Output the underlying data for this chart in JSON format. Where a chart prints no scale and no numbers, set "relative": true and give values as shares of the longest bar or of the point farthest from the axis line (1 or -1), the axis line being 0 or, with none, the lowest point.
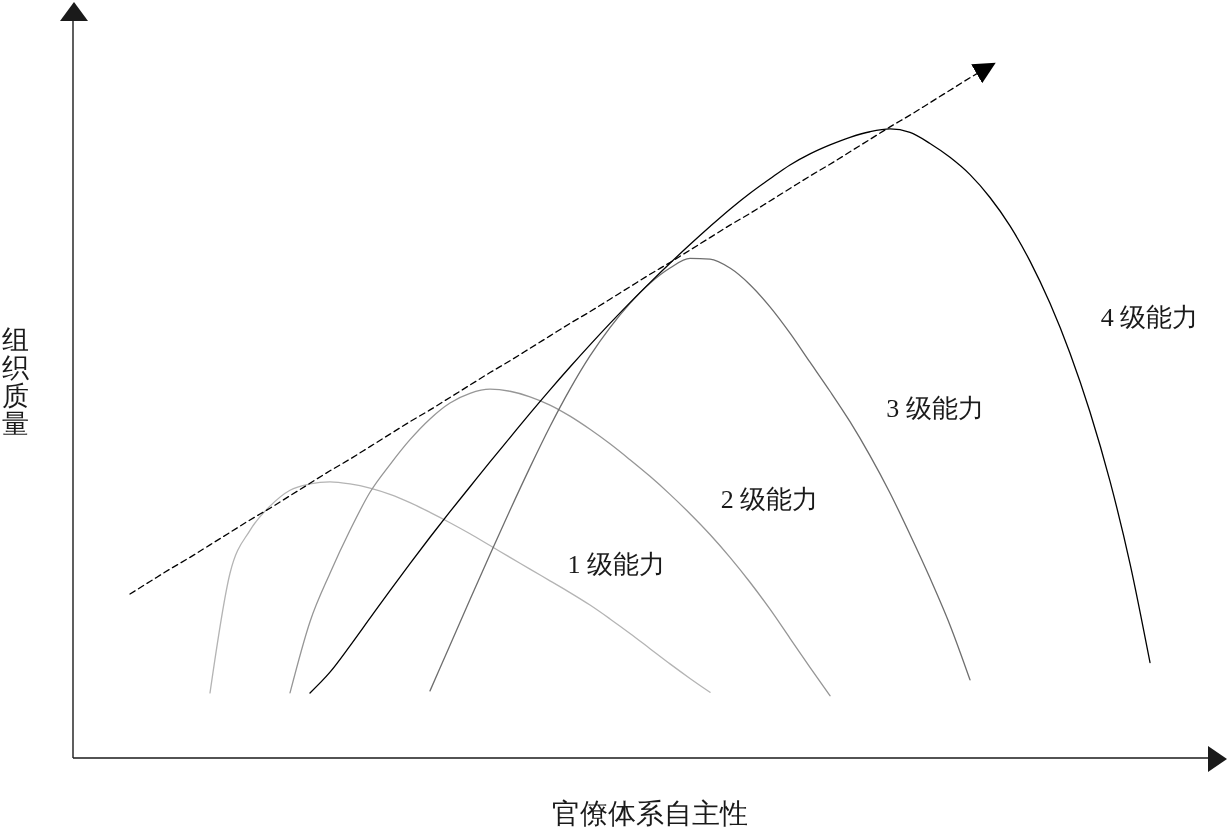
{
  "chart_data": {
    "type": "line",
    "relative": true,
    "xlabel": "官僚体系自主性",
    "ylabel": "组织质量",
    "categories": [
      null,
      null,
      null,
      null,
      null,
      null,
      null,
      null,
      null,
      null,
      null,
      null,
      null,
      null,
      null,
      null,
      null,
      null,
      null,
      null,
      null,
      null,
      null,
      null,
      null,
      null,
      null,
      null,
      null,
      null,
      null,
      null,
      null,
      null,
      null,
      null,
      null,
      null,
      null,
      null,
      null,
      null,
      null,
      null,
      null,
      null,
      null,
      null,
      null,
      null,
      null,
      null,
      null,
      null,
      null,
      null,
      null
    ],
    "series": [
      {
        "name": "1 级能力",
        "color": "#b4b4b4",
        "values": [
          null,
          null,
          null,
          null,
          null,
          null,
          0.094,
          0.267,
          0.329,
          0.364,
          0.387,
          0.396,
          0.399,
          0.396,
          0.39,
          0.381,
          0.369,
          0.355,
          0.34,
          0.324,
          0.307,
          0.29,
          0.273,
          0.256,
          0.239,
          0.221,
          0.201,
          0.18,
          0.158,
          0.136,
          0.115,
          0.095,
          null,
          null,
          null,
          null,
          null,
          null,
          null,
          null,
          null,
          null,
          null,
          null,
          null,
          null,
          null,
          null,
          null,
          null,
          null,
          null,
          null,
          null,
          null,
          null,
          null
        ]
      },
      {
        "name": "2 级能力",
        "color": "#969696",
        "values": [
          null,
          null,
          null,
          null,
          null,
          null,
          null,
          null,
          null,
          null,
          0.094,
          0.197,
          0.267,
          0.329,
          0.384,
          0.424,
          0.46,
          0.49,
          0.513,
          0.527,
          0.533,
          0.53,
          0.522,
          0.51,
          0.494,
          0.475,
          0.454,
          0.431,
          0.407,
          0.381,
          0.353,
          0.323,
          0.29,
          0.254,
          0.215,
          0.173,
          0.131,
          0.09,
          null,
          null,
          null,
          null,
          null,
          null,
          null,
          null,
          null,
          null,
          null,
          null,
          null,
          null,
          null,
          null,
          null,
          null,
          null
        ]
      },
      {
        "name": "3 级能力",
        "color": "#6e6e6e",
        "values": [
          null,
          null,
          null,
          null,
          null,
          null,
          null,
          null,
          null,
          null,
          null,
          null,
          null,
          null,
          null,
          null,
          null,
          0.097,
          0.163,
          0.229,
          0.294,
          0.358,
          0.42,
          0.479,
          0.533,
          0.581,
          0.622,
          0.657,
          0.686,
          0.708,
          0.722,
          0.721,
          0.708,
          0.684,
          0.652,
          0.614,
          0.572,
          0.53,
          0.486,
          0.437,
          0.383,
          0.323,
          0.26,
          0.192,
          0.113,
          null,
          null,
          null,
          null,
          null,
          null,
          null,
          null,
          null,
          null,
          null,
          null
        ]
      },
      {
        "name": "4 级能力",
        "color": "#000000",
        "values": [
          null,
          null,
          null,
          null,
          null,
          null,
          null,
          null,
          null,
          null,
          null,
          0.094,
          0.124,
          0.162,
          0.202,
          0.242,
          0.281,
          0.319,
          0.356,
          0.392,
          0.428,
          0.463,
          0.498,
          0.532,
          0.565,
          0.597,
          0.628,
          0.658,
          0.687,
          0.715,
          0.742,
          0.768,
          0.793,
          0.816,
          0.837,
          0.857,
          0.873,
          0.886,
          0.897,
          0.905,
          0.909,
          0.904,
          0.888,
          0.868,
          0.843,
          0.81,
          0.769,
          0.718,
          0.657,
          0.585,
          0.5,
          0.4,
          0.281,
          0.138,
          null,
          null,
          null
        ]
      },
      {
        "type": "line",
        "line_style": "dashed",
        "color": "#000000",
        "values": [
          null,
          null,
          0.237,
          0.255,
          0.273,
          0.29,
          0.308,
          0.326,
          0.344,
          0.361,
          0.379,
          0.397,
          0.415,
          0.432,
          0.45,
          0.468,
          0.486,
          0.503,
          0.521,
          0.539,
          0.557,
          0.574,
          0.592,
          0.61,
          0.628,
          0.645,
          0.663,
          0.681,
          0.699,
          0.716,
          0.734,
          0.752,
          0.77,
          0.787,
          0.805,
          0.823,
          0.841,
          0.858,
          0.876,
          0.894,
          0.912,
          0.929,
          0.947,
          0.965,
          0.983,
          1,
          null,
          null,
          null,
          null,
          null,
          null,
          null,
          null,
          null,
          null,
          null
        ]
      }
    ]
  }
}
